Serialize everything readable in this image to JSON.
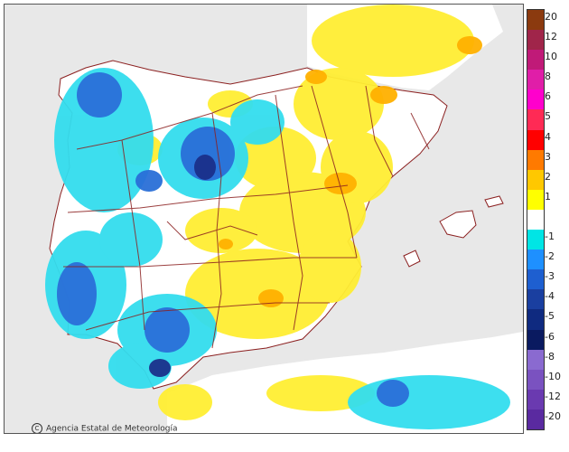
{
  "credit": "Agencia Estatal de Meteorología",
  "legend": {
    "labels": [
      "20",
      "12",
      "10",
      "8",
      "6",
      "5",
      "4",
      "3",
      "2",
      "1",
      "",
      "-1",
      "-2",
      "-3",
      "-4",
      "-5",
      "-6",
      "-8",
      "-10",
      "-12",
      "-20"
    ],
    "colors": [
      "#8b3a0f",
      "#a0254a",
      "#c01a78",
      "#e01ea8",
      "#ff00cc",
      "#ff2a55",
      "#ff0000",
      "#ff7a00",
      "#ffc800",
      "#ffff00",
      "#ffffff",
      "#00e5e5",
      "#1e90ff",
      "#1e5fd0",
      "#1a3fa0",
      "#0f2a80",
      "#0a1a60",
      "#8a6ad0",
      "#7a52c0",
      "#6a3ab0",
      "#5a2aa0"
    ]
  },
  "colors": {
    "sea": "#e8e8e8",
    "land": "#ffffff",
    "border": "#8b2020",
    "positive": "#ffee33",
    "positive_strong": "#ffb000",
    "negative": "#33ddee",
    "negative_strong": "#2a6fd8",
    "negative_deep": "#1a2f8a"
  }
}
